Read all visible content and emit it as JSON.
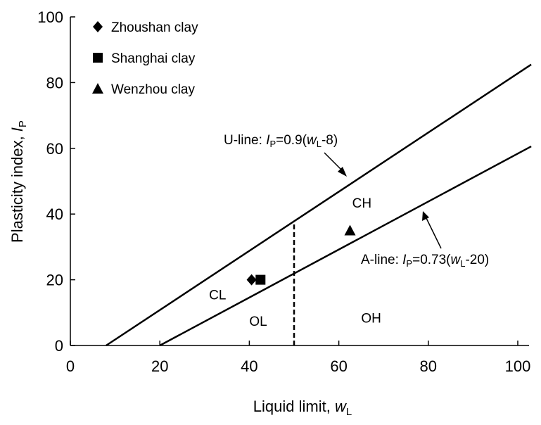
{
  "chart_data": {
    "type": "scatter",
    "x": {
      "ylim_note": "",
      "label_text": "Liquid limit, ",
      "label_var": "w",
      "label_sub": "L",
      "range": [
        0,
        100
      ],
      "ticks": [
        0,
        20,
        40,
        60,
        80,
        100
      ]
    },
    "y": {
      "label_text": "Plasticity index, ",
      "label_var": "I",
      "label_sub": "P",
      "range": [
        0,
        100
      ],
      "ticks": [
        0,
        20,
        40,
        60,
        80,
        100
      ]
    },
    "series": [
      {
        "name": "Zhoushan clay",
        "marker": "diamond",
        "points": [
          [
            40.5,
            20
          ]
        ]
      },
      {
        "name": "Shanghai clay",
        "marker": "square",
        "points": [
          [
            42.5,
            20
          ]
        ]
      },
      {
        "name": "Wenzhou clay",
        "marker": "triangle",
        "points": [
          [
            62.5,
            35
          ]
        ]
      }
    ],
    "lines": [
      {
        "id": "u-line",
        "slope": 0.9,
        "offset": 8,
        "x_range": [
          8.0,
          103
        ]
      },
      {
        "id": "a-line",
        "slope": 0.73,
        "offset": 20,
        "x_range": [
          20,
          103
        ]
      }
    ],
    "divider": {
      "x": 50,
      "y_range": [
        0,
        37.5
      ]
    },
    "annotations": {
      "u_line": {
        "prefix": "U-line: ",
        "var": "I",
        "sub": "P",
        "eq": "=0.9(",
        "var2": "w",
        "sub2": "L",
        "tail": "-8)"
      },
      "a_line": {
        "prefix": "A-line: ",
        "var": "I",
        "sub": "P",
        "eq": "=0.73(",
        "var2": "w",
        "sub2": "L",
        "tail": "-20)"
      }
    },
    "zones": {
      "ch": {
        "text": "CH",
        "at": [
          63,
          42
        ]
      },
      "cl": {
        "text": "CL",
        "at": [
          31,
          14
        ]
      },
      "ol": {
        "text": "OL",
        "at": [
          40,
          6
        ]
      },
      "oh": {
        "text": "OH",
        "at": [
          65,
          7
        ]
      }
    },
    "legend_placement": "top-left",
    "grid": false
  }
}
